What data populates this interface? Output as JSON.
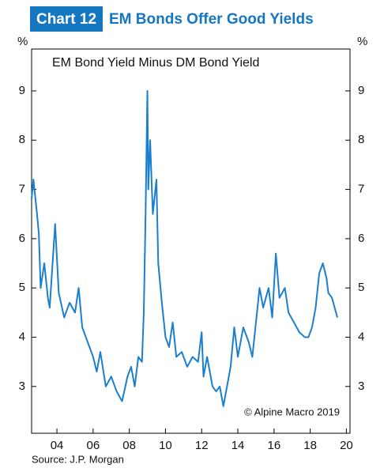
{
  "chart_data": {
    "type": "line",
    "chart_label": "Chart 12",
    "title": "EM Bonds Offer Good Yields",
    "subtitle": "EM Bond Yield Minus DM Bond Yield",
    "y_unit": "%",
    "annotation": "© Alpine Macro 2019",
    "source": "Source: J.P. Morgan",
    "color": "#1b7fd0",
    "xlim": [
      2002.6,
      2020.2
    ],
    "xticks": [
      {
        "value": 2004,
        "label": "04"
      },
      {
        "value": 2006,
        "label": "06"
      },
      {
        "value": 2008,
        "label": "08"
      },
      {
        "value": 2010,
        "label": "10"
      },
      {
        "value": 2012,
        "label": "12"
      },
      {
        "value": 2014,
        "label": "14"
      },
      {
        "value": 2016,
        "label": "16"
      },
      {
        "value": 2018,
        "label": "18"
      },
      {
        "value": 2020,
        "label": "20"
      }
    ],
    "ylim": [
      2.05,
      9.85
    ],
    "yticks": [
      3,
      4,
      5,
      6,
      7,
      8,
      9
    ],
    "x": [
      2002.6,
      2002.7,
      2002.9,
      2003.0,
      2003.1,
      2003.3,
      2003.5,
      2003.6,
      2003.9,
      2004.1,
      2004.4,
      2004.7,
      2005.0,
      2005.2,
      2005.4,
      2005.7,
      2006.0,
      2006.2,
      2006.4,
      2006.7,
      2007.0,
      2007.3,
      2007.6,
      2007.9,
      2008.1,
      2008.3,
      2008.5,
      2008.7,
      2008.8,
      2008.9,
      2009.0,
      2009.05,
      2009.15,
      2009.3,
      2009.5,
      2009.6,
      2009.8,
      2010.0,
      2010.2,
      2010.4,
      2010.6,
      2010.9,
      2011.2,
      2011.5,
      2011.8,
      2012.0,
      2012.1,
      2012.3,
      2012.6,
      2012.8,
      2013.0,
      2013.2,
      2013.4,
      2013.6,
      2013.8,
      2014.0,
      2014.3,
      2014.6,
      2014.8,
      2015.0,
      2015.2,
      2015.4,
      2015.7,
      2015.9,
      2016.1,
      2016.3,
      2016.6,
      2016.8,
      2017.1,
      2017.4,
      2017.7,
      2017.9,
      2018.1,
      2018.3,
      2018.5,
      2018.7,
      2018.9,
      2019.0,
      2019.2,
      2019.35,
      2019.5
    ],
    "values": [
      6.8,
      7.2,
      6.5,
      6.1,
      5.0,
      5.5,
      4.8,
      4.6,
      6.3,
      4.9,
      4.4,
      4.7,
      4.5,
      5.0,
      4.2,
      3.9,
      3.6,
      3.3,
      3.7,
      3.0,
      3.2,
      2.9,
      2.7,
      3.2,
      3.4,
      3.0,
      3.6,
      3.5,
      4.5,
      6.5,
      9.0,
      7.0,
      8.0,
      6.5,
      7.2,
      5.5,
      4.7,
      4.0,
      3.8,
      4.3,
      3.6,
      3.7,
      3.4,
      3.6,
      3.5,
      4.1,
      3.2,
      3.6,
      3.0,
      2.9,
      3.0,
      2.6,
      3.0,
      3.4,
      4.2,
      3.6,
      4.2,
      3.9,
      3.6,
      4.3,
      5.0,
      4.6,
      5.0,
      4.4,
      5.7,
      4.8,
      5.0,
      4.5,
      4.3,
      4.1,
      4.0,
      4.0,
      4.2,
      4.6,
      5.3,
      5.5,
      5.2,
      4.9,
      4.8,
      4.6,
      4.4
    ]
  }
}
